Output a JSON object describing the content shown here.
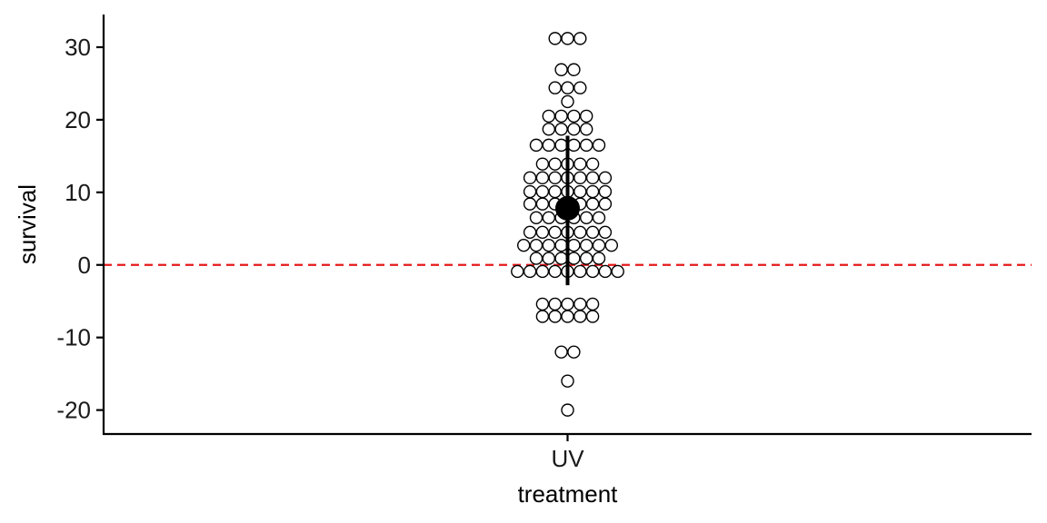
{
  "chart_data": {
    "type": "dotplot",
    "xlabel": "treatment",
    "ylabel": "survival",
    "categories": [
      "UV"
    ],
    "ylim": [
      -23.3,
      34.5
    ],
    "yticks": [
      -20,
      -10,
      0,
      10,
      20,
      30
    ],
    "ytick_labels": [
      "-20",
      "-10",
      "0",
      "10",
      "20",
      "30"
    ],
    "grid": false,
    "legend": "none",
    "reference_line": {
      "y": 0,
      "style": "dashed",
      "color": "#e41a1c"
    },
    "summary": {
      "category": "UV",
      "mean": 7.8,
      "lower": -2.8,
      "upper": 17.8
    },
    "dot_rows": [
      {
        "y": 31.2,
        "count": 3
      },
      {
        "y": 26.9,
        "count": 2
      },
      {
        "y": 24.4,
        "count": 3
      },
      {
        "y": 22.5,
        "count": 1
      },
      {
        "y": 20.5,
        "count": 4
      },
      {
        "y": 18.7,
        "count": 4
      },
      {
        "y": 16.5,
        "count": 6
      },
      {
        "y": 13.9,
        "count": 5
      },
      {
        "y": 12.0,
        "count": 7
      },
      {
        "y": 10.1,
        "count": 7
      },
      {
        "y": 8.4,
        "count": 7
      },
      {
        "y": 6.5,
        "count": 6
      },
      {
        "y": 4.5,
        "count": 7
      },
      {
        "y": 2.7,
        "count": 8
      },
      {
        "y": 0.9,
        "count": 6
      },
      {
        "y": -0.9,
        "count": 9
      },
      {
        "y": -5.4,
        "count": 5
      },
      {
        "y": -7.1,
        "count": 5
      },
      {
        "y": -12.0,
        "count": 2
      },
      {
        "y": -16.0,
        "count": 1
      },
      {
        "y": -20.0,
        "count": 1
      }
    ],
    "colors": {
      "dot_fill": "#ffffff",
      "dot_stroke": "#000000",
      "summary": "#000000",
      "axis": "#000000"
    }
  }
}
